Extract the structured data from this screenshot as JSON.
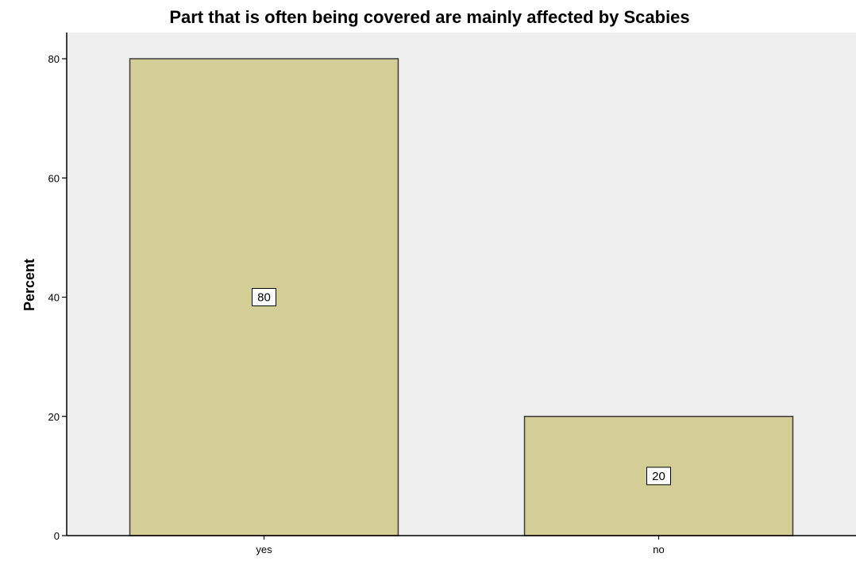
{
  "chart_data": {
    "type": "bar",
    "title": "Part that is often being covered are mainly affected by Scabies",
    "xlabel": "",
    "ylabel": "Percent",
    "categories": [
      "yes",
      "no"
    ],
    "values": [
      80,
      20
    ],
    "data_labels": [
      "80",
      "20"
    ],
    "ylim": [
      0,
      80
    ],
    "yticks": [
      0,
      20,
      40,
      60,
      80
    ],
    "grid": false,
    "legend": "none",
    "colors": {
      "bar_fill": "#d3cd96",
      "bar_stroke": "#3c3c3c",
      "plot_background": "#efefef",
      "axis": "#000000"
    }
  }
}
